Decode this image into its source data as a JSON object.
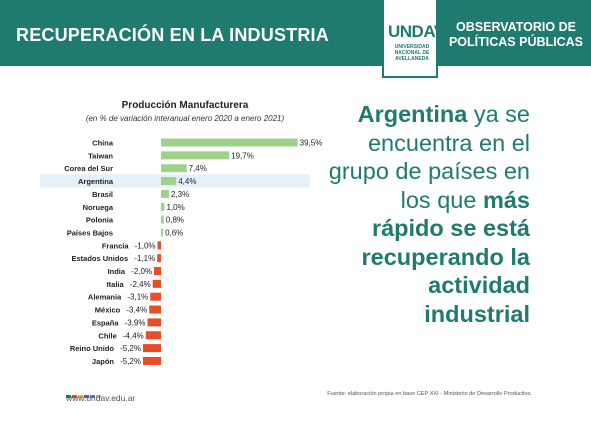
{
  "header": {
    "title": "RECUPERACIÓN EN LA INDUSTRIA",
    "logo_text": "UNDAV",
    "logo_sub": [
      "UNIVERSIDAD",
      "NACIONAL DE",
      "AVELLANEDA"
    ],
    "observatorio_line1": "OBSERVATORIO DE",
    "observatorio_line2": "POLÍTICAS PÚBLICAS"
  },
  "chart_data": {
    "type": "bar",
    "orientation": "horizontal",
    "title": "Producción Manufacturera",
    "subtitle": "(en % de variación interanual enero 2020 a enero 2021)",
    "categories": [
      "China",
      "Taiwan",
      "Corea del Sur",
      "Argentina",
      "Brasil",
      "Noruega",
      "Polonia",
      "Países Bajos",
      "Francia",
      "Estados Unidos",
      "India",
      "Italia",
      "Alemania",
      "México",
      "España",
      "Chile",
      "Reino Unido",
      "Japón"
    ],
    "values": [
      39.5,
      19.7,
      7.4,
      4.4,
      2.3,
      1.0,
      0.8,
      0.6,
      -1.0,
      -1.1,
      -2.0,
      -2.4,
      -3.1,
      -3.4,
      -3.9,
      -4.4,
      -5.2,
      -5.2
    ],
    "value_labels": [
      "39,5%",
      "19,7%",
      "7,4%",
      "4,4%",
      "2,3%",
      "1,0%",
      "0,8%",
      "0,6%",
      "-1,0%",
      "-1,1%",
      "-2,0%",
      "-2,4%",
      "-3,1%",
      "-3,4%",
      "-3,9%",
      "-4,4%",
      "-5,2%",
      "-5,2%"
    ],
    "highlight": "Argentina",
    "colors": {
      "positive": "#9ed28a",
      "negative": "#e84d2a",
      "highlight_band": "#e4f1f8"
    }
  },
  "message": {
    "parts": [
      {
        "text": "Argentina",
        "bold": true
      },
      {
        "text": " ya se encuentra en el grupo de países en los que ",
        "bold": false
      },
      {
        "text": "más rápido se está recuperando la actividad industrial",
        "bold": true
      }
    ]
  },
  "footer": {
    "url": "www.undav.edu.ar",
    "source": "Fuente: elaboración propia en base CEP XXI - Ministerio de Desarrollo Productivo.",
    "dot_colors": [
      "#1f7b6f",
      "#e84d2a",
      "#f2b31b",
      "#6a4fa0",
      "#3d8fd6",
      "#9ed28a"
    ]
  }
}
